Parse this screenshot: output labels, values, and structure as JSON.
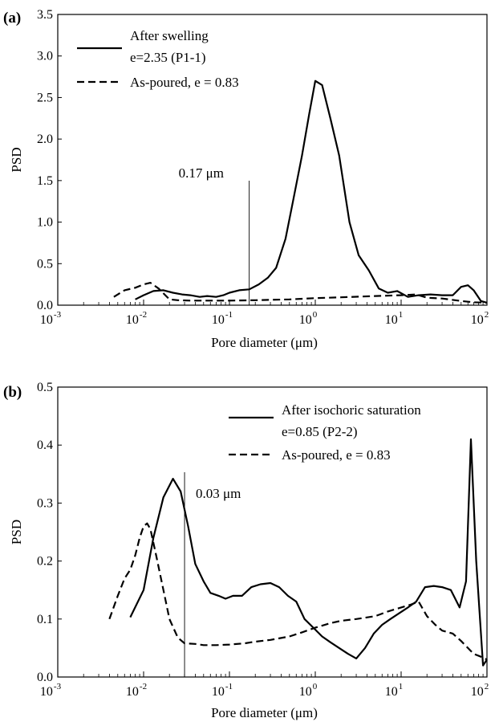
{
  "chart_data": [
    {
      "type": "line",
      "panel_label": "(a)",
      "xlabel": "Pore diameter (μm)",
      "ylabel": "PSD",
      "xscale": "log",
      "xlim": [
        0.001,
        100
      ],
      "ylim": [
        0,
        3.5
      ],
      "yticks": [
        "0.0",
        "0.5",
        "1.0",
        "1.5",
        "2.0",
        "2.5",
        "3.0",
        "3.5"
      ],
      "xticks": [
        {
          "base": "10",
          "exp": "-3"
        },
        {
          "base": "10",
          "exp": "-2"
        },
        {
          "base": "10",
          "exp": "-1"
        },
        {
          "base": "10",
          "exp": "0"
        },
        {
          "base": "10",
          "exp": "1"
        },
        {
          "base": "10",
          "exp": "2"
        }
      ],
      "legend_position": "top-left",
      "annotation": {
        "text": "0.17 μm",
        "x": 0.17
      },
      "series": [
        {
          "name": "After swelling",
          "name_line2": " e=2.35 (P1-1)",
          "dash": "solid",
          "x": [
            0.008,
            0.01,
            0.013,
            0.017,
            0.022,
            0.028,
            0.035,
            0.045,
            0.055,
            0.07,
            0.085,
            0.1,
            0.13,
            0.17,
            0.22,
            0.28,
            0.35,
            0.45,
            0.55,
            0.7,
            0.85,
            1.0,
            1.2,
            1.5,
            1.9,
            2.5,
            3.2,
            4.2,
            5.5,
            7.0,
            9.0,
            12,
            16,
            22,
            30,
            40,
            50,
            60,
            70,
            85,
            100
          ],
          "y": [
            0.07,
            0.12,
            0.17,
            0.18,
            0.15,
            0.13,
            0.12,
            0.1,
            0.11,
            0.1,
            0.12,
            0.15,
            0.18,
            0.19,
            0.25,
            0.33,
            0.45,
            0.8,
            1.25,
            1.8,
            2.3,
            2.7,
            2.65,
            2.25,
            1.8,
            1.0,
            0.6,
            0.42,
            0.2,
            0.15,
            0.17,
            0.1,
            0.12,
            0.13,
            0.12,
            0.12,
            0.22,
            0.24,
            0.18,
            0.05,
            0.03
          ]
        },
        {
          "name": "As-poured, e = 0.83",
          "dash": "dashed",
          "x": [
            0.0045,
            0.006,
            0.008,
            0.01,
            0.012,
            0.015,
            0.02,
            0.025,
            0.035,
            0.05,
            0.1,
            0.2,
            0.5,
            1.0,
            2.0,
            5.0,
            10,
            15,
            20,
            30,
            50,
            70,
            100
          ],
          "y": [
            0.1,
            0.18,
            0.21,
            0.25,
            0.27,
            0.2,
            0.07,
            0.06,
            0.055,
            0.055,
            0.055,
            0.06,
            0.07,
            0.085,
            0.095,
            0.11,
            0.12,
            0.13,
            0.09,
            0.08,
            0.05,
            0.035,
            0.03
          ]
        }
      ]
    },
    {
      "type": "line",
      "panel_label": "(b)",
      "xlabel": "Pore diameter (μm)",
      "ylabel": "PSD",
      "xscale": "log",
      "xlim": [
        0.001,
        100
      ],
      "ylim": [
        0,
        0.5
      ],
      "yticks": [
        "0.0",
        "0.1",
        "0.2",
        "0.3",
        "0.4",
        "0.5"
      ],
      "xticks": [
        {
          "base": "10",
          "exp": "-3"
        },
        {
          "base": "10",
          "exp": "-2"
        },
        {
          "base": "10",
          "exp": "-1"
        },
        {
          "base": "10",
          "exp": "0"
        },
        {
          "base": "10",
          "exp": "1"
        },
        {
          "base": "10",
          "exp": "2"
        }
      ],
      "legend_position": "top-right",
      "annotation": {
        "text": "0.03 μm",
        "x": 0.03
      },
      "series": [
        {
          "name": "After isochoric saturation",
          "name_line2": " e=0.85 (P2-2)",
          "dash": "solid",
          "x": [
            0.007,
            0.01,
            0.013,
            0.017,
            0.022,
            0.027,
            0.033,
            0.04,
            0.05,
            0.06,
            0.075,
            0.09,
            0.11,
            0.14,
            0.18,
            0.23,
            0.3,
            0.38,
            0.48,
            0.6,
            0.75,
            0.95,
            1.2,
            1.5,
            1.9,
            2.4,
            3.0,
            3.8,
            4.8,
            6.0,
            7.5,
            9.5,
            12,
            15,
            19,
            24,
            30,
            38,
            48,
            57,
            65,
            75,
            90,
            100
          ],
          "y": [
            0.103,
            0.15,
            0.24,
            0.31,
            0.342,
            0.32,
            0.26,
            0.195,
            0.165,
            0.145,
            0.14,
            0.135,
            0.14,
            0.14,
            0.155,
            0.16,
            0.162,
            0.155,
            0.14,
            0.13,
            0.1,
            0.085,
            0.07,
            0.06,
            0.05,
            0.04,
            0.032,
            0.05,
            0.075,
            0.09,
            0.1,
            0.11,
            0.12,
            0.13,
            0.155,
            0.157,
            0.155,
            0.15,
            0.12,
            0.165,
            0.41,
            0.2,
            0.02,
            0.03
          ]
        },
        {
          "name": "As-poured, e = 0.83",
          "dash": "dashed",
          "x": [
            0.004,
            0.005,
            0.006,
            0.007,
            0.008,
            0.009,
            0.01,
            0.011,
            0.012,
            0.014,
            0.017,
            0.02,
            0.025,
            0.03,
            0.04,
            0.05,
            0.07,
            0.1,
            0.15,
            0.2,
            0.3,
            0.5,
            0.7,
            1.0,
            1.5,
            2.0,
            3.0,
            5.0,
            7.0,
            10,
            13,
            16,
            20,
            25,
            30,
            40,
            50,
            60,
            70,
            85,
            100
          ],
          "y": [
            0.1,
            0.14,
            0.17,
            0.185,
            0.21,
            0.24,
            0.26,
            0.265,
            0.255,
            0.21,
            0.15,
            0.1,
            0.068,
            0.058,
            0.057,
            0.055,
            0.055,
            0.056,
            0.058,
            0.061,
            0.064,
            0.07,
            0.077,
            0.085,
            0.093,
            0.097,
            0.1,
            0.105,
            0.113,
            0.12,
            0.125,
            0.13,
            0.105,
            0.09,
            0.08,
            0.075,
            0.062,
            0.05,
            0.04,
            0.035,
            0.03
          ]
        }
      ]
    }
  ]
}
